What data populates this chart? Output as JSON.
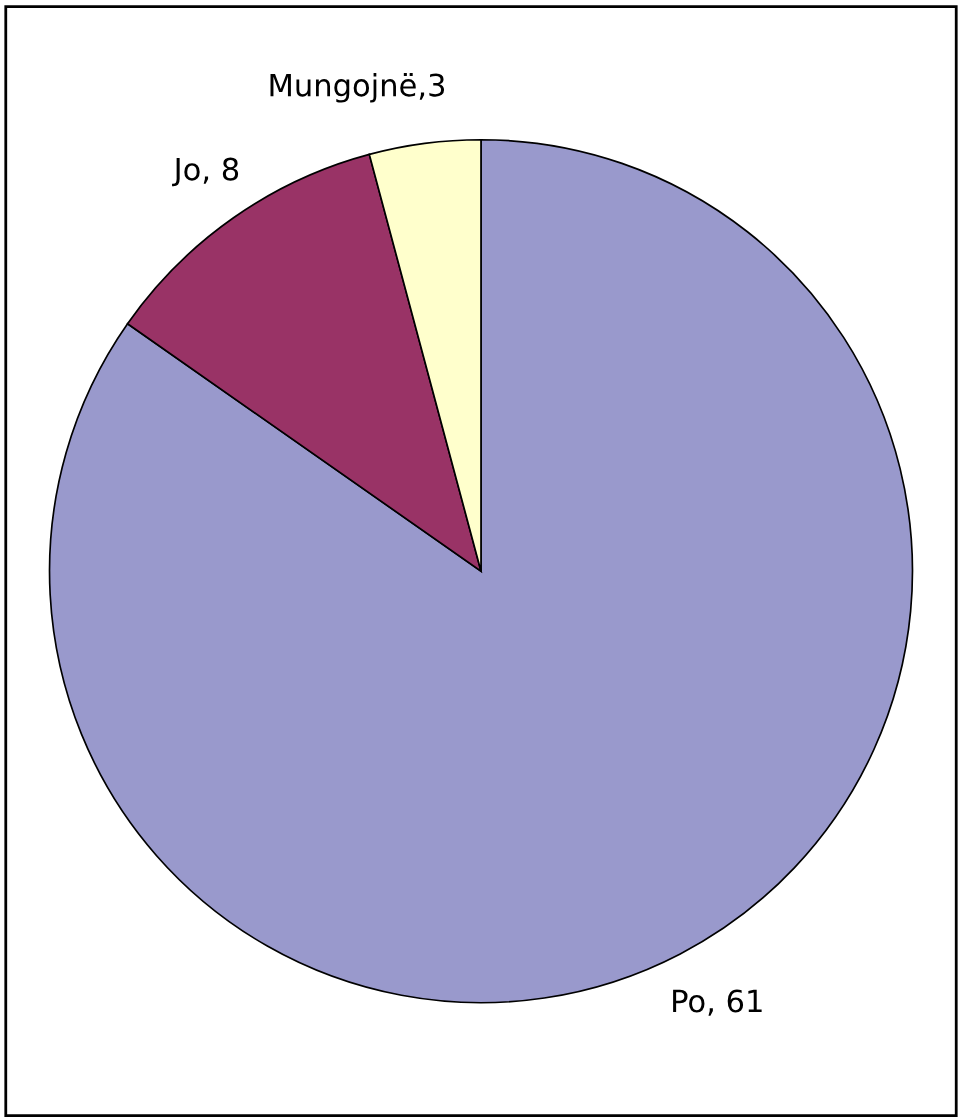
{
  "chart_data": {
    "type": "pie",
    "categories": [
      "Po",
      "Jo",
      "Mungojnë"
    ],
    "values": [
      61,
      8,
      3
    ],
    "colors": [
      "#9999cc",
      "#993366",
      "#ffffcc"
    ],
    "value_labels": [
      ", 61",
      ", 8",
      ",3"
    ]
  }
}
